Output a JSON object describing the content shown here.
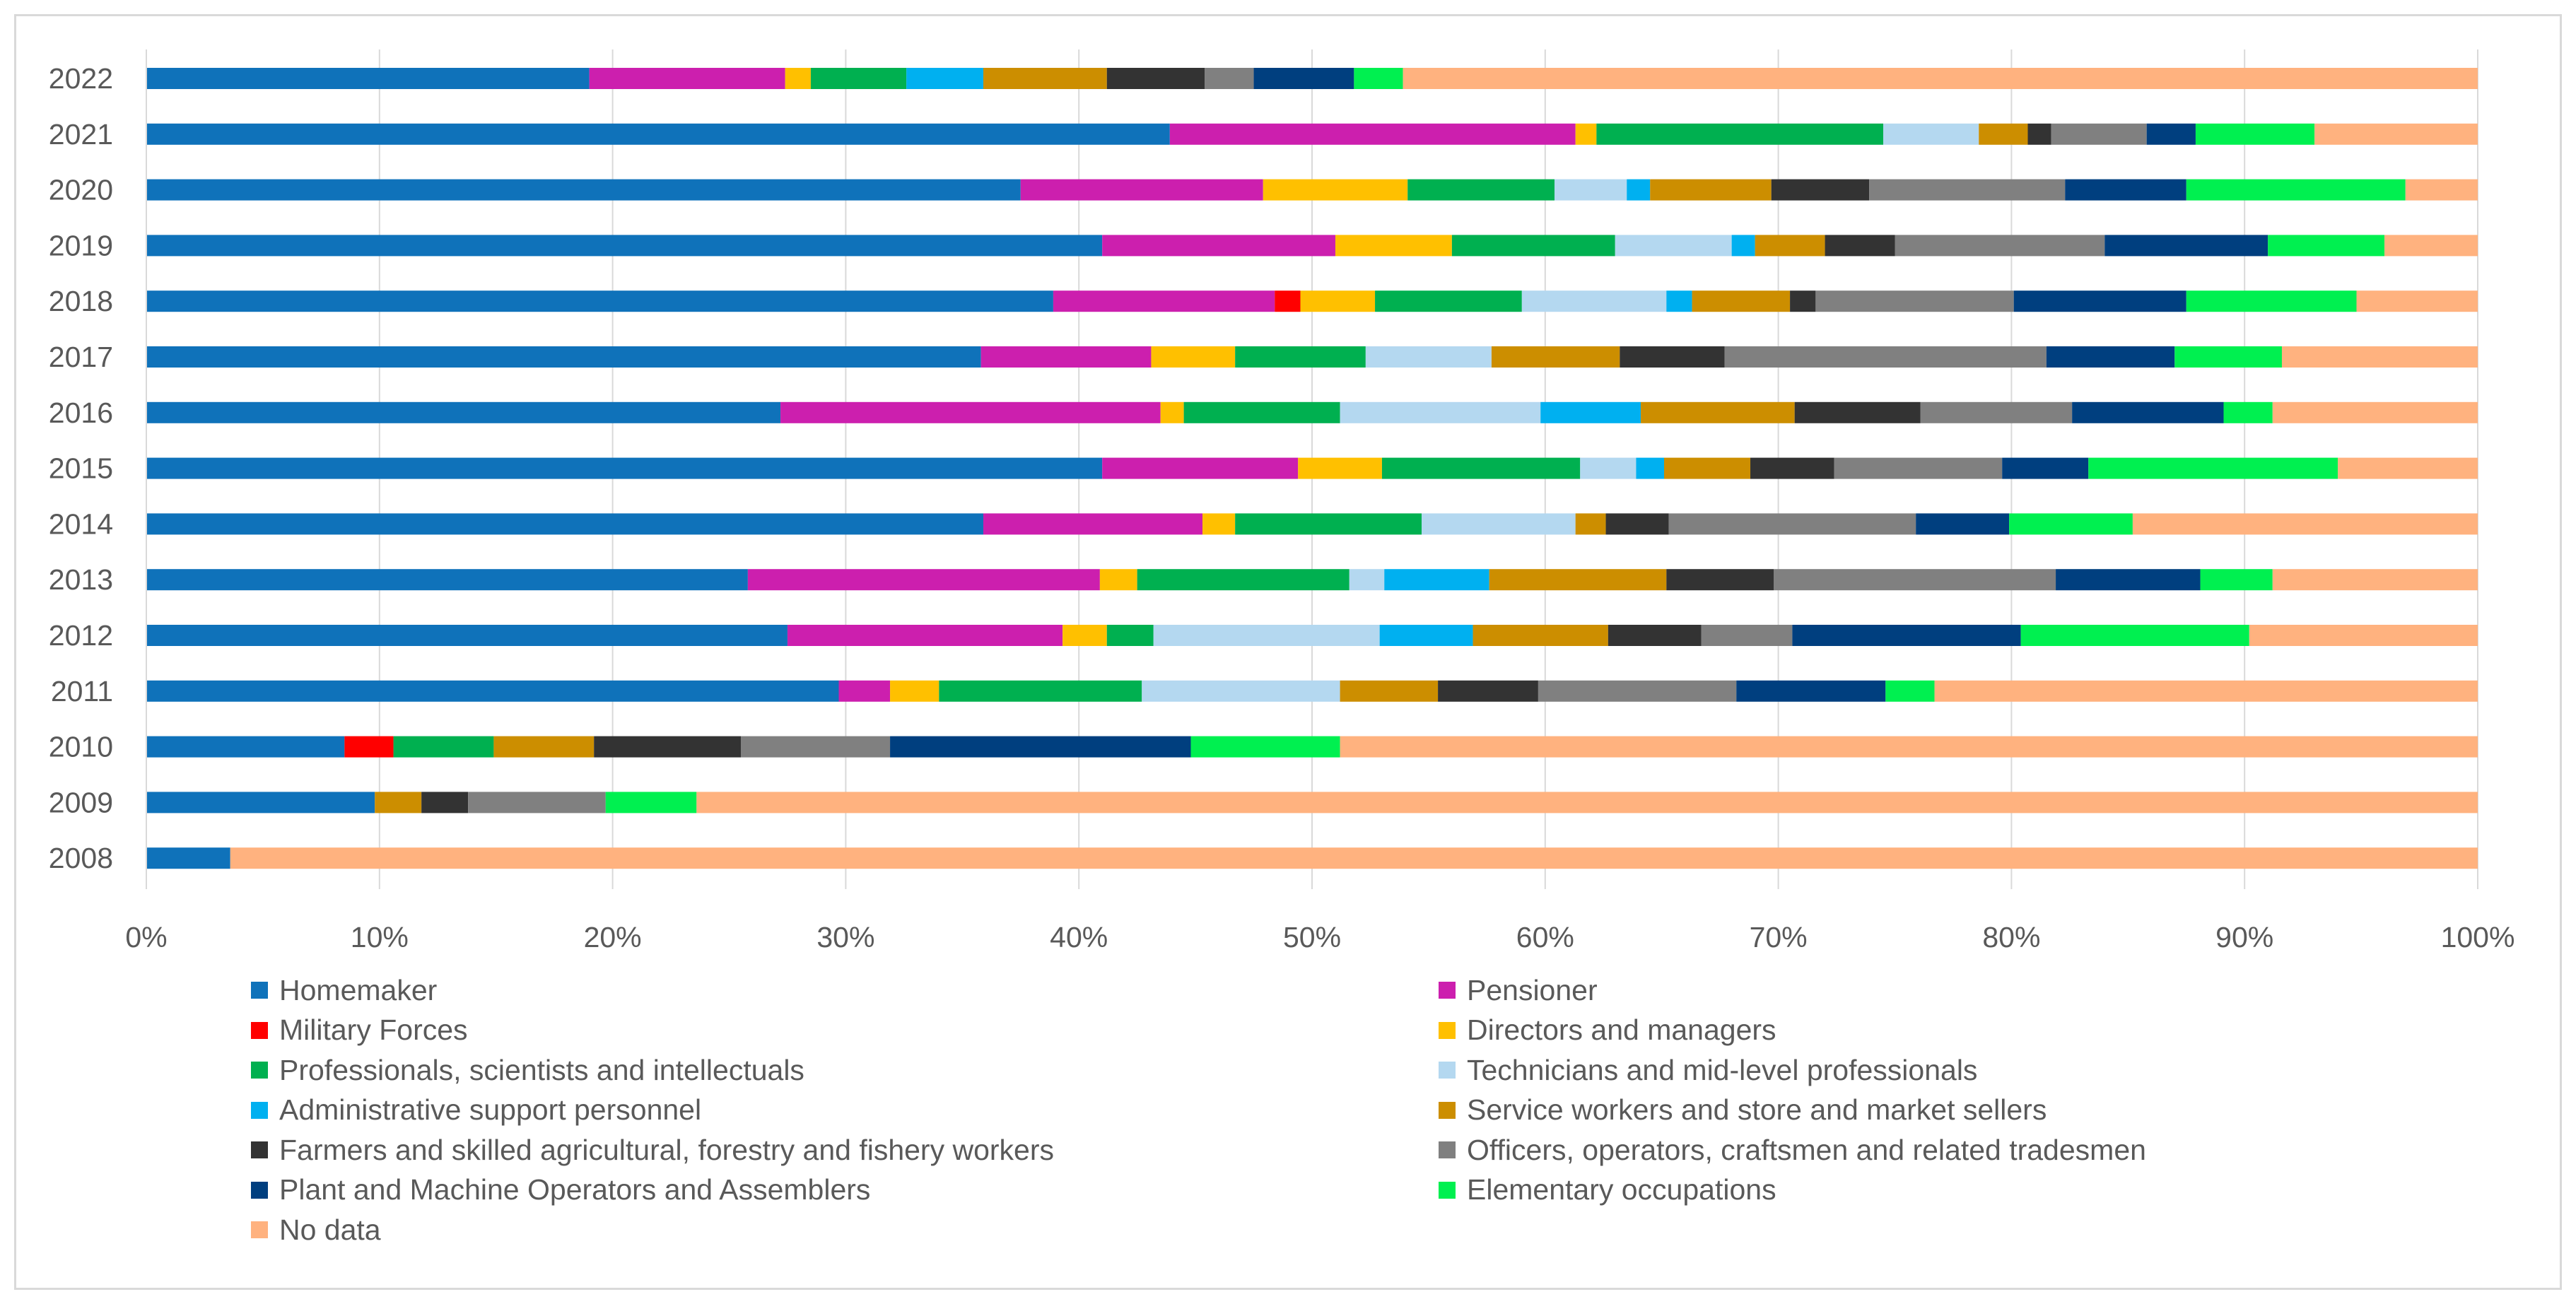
{
  "chart_data": {
    "type": "bar",
    "orientation": "horizontal",
    "stacked": "percent",
    "title": "",
    "xlabel": "",
    "ylabel": "",
    "xlim": [
      0,
      100
    ],
    "x_tick_labels": [
      "0%",
      "10%",
      "20%",
      "30%",
      "40%",
      "50%",
      "60%",
      "70%",
      "80%",
      "90%",
      "100%"
    ],
    "grid": "vertical",
    "legend_position": "bottom",
    "categories": [
      "2022",
      "2021",
      "2020",
      "2019",
      "2018",
      "2017",
      "2016",
      "2015",
      "2014",
      "2013",
      "2012",
      "2011",
      "2010",
      "2009",
      "2008"
    ],
    "series": [
      {
        "name": "Homemaker",
        "color": "#0F72BA",
        "values": [
          19.0,
          43.9,
          37.5,
          41.0,
          38.9,
          35.8,
          27.2,
          41.0,
          35.9,
          25.8,
          27.5,
          29.7,
          8.5,
          9.8,
          3.6
        ]
      },
      {
        "name": "Pensioner",
        "color": "#CC1FAE",
        "values": [
          8.4,
          17.4,
          10.4,
          10.0,
          9.5,
          7.3,
          16.3,
          8.4,
          9.4,
          15.1,
          11.8,
          2.2,
          0,
          0,
          0
        ]
      },
      {
        "name": "Military Forces",
        "color": "#FF0000",
        "values": [
          0,
          0,
          0,
          0,
          1.1,
          0,
          0,
          0,
          0,
          0,
          0,
          0,
          2.1,
          0,
          0
        ]
      },
      {
        "name": "Directors and managers",
        "color": "#FFC000",
        "values": [
          1.1,
          0.9,
          6.2,
          5.0,
          3.2,
          3.6,
          1.0,
          3.6,
          1.4,
          1.6,
          1.9,
          2.1,
          0,
          0,
          0
        ]
      },
      {
        "name": "Professionals, scientists and intellectuals",
        "color": "#00B050",
        "values": [
          4.1,
          12.3,
          6.3,
          7.0,
          6.3,
          5.6,
          6.7,
          8.5,
          8.0,
          9.1,
          2.0,
          8.7,
          4.3,
          0,
          0
        ]
      },
      {
        "name": "Technicians and mid-level professionals",
        "color": "#B4D8F0",
        "values": [
          0,
          4.1,
          3.1,
          5.0,
          6.2,
          5.4,
          8.6,
          2.4,
          6.6,
          1.5,
          9.7,
          8.5,
          0,
          0,
          0
        ]
      },
      {
        "name": "Administrative support personnel",
        "color": "#00B0F0",
        "values": [
          3.3,
          0,
          1.0,
          1.0,
          1.1,
          0,
          4.3,
          1.2,
          0,
          4.5,
          4.0,
          0,
          0,
          0,
          0
        ]
      },
      {
        "name": "Service workers and store and market sellers",
        "color": "#CC8E00",
        "values": [
          5.3,
          2.1,
          5.2,
          3.0,
          4.2,
          5.5,
          6.6,
          3.7,
          1.3,
          7.6,
          5.8,
          4.2,
          4.3,
          2.0,
          0
        ]
      },
      {
        "name": "Farmers and skilled agricultural, forestry and fishery workers",
        "color": "#333333",
        "values": [
          4.2,
          1.0,
          4.2,
          3.0,
          1.1,
          4.5,
          5.4,
          3.6,
          2.7,
          4.6,
          4.0,
          4.3,
          6.3,
          2.0,
          0
        ]
      },
      {
        "name": "Officers, operators, craftsmen and related tradesmen",
        "color": "#808080",
        "values": [
          2.1,
          4.1,
          8.4,
          9.0,
          8.5,
          13.8,
          6.5,
          7.2,
          10.6,
          12.1,
          3.9,
          8.5,
          6.4,
          5.9,
          0
        ]
      },
      {
        "name": "Plant and Machine Operators and Assemblers",
        "color": "#003F7F",
        "values": [
          4.3,
          2.1,
          5.2,
          7.0,
          7.4,
          5.5,
          6.5,
          3.7,
          4.0,
          6.2,
          9.8,
          6.4,
          12.9,
          0,
          0
        ]
      },
      {
        "name": "Elementary occupations",
        "color": "#00F050",
        "values": [
          2.1,
          5.1,
          9.4,
          5.0,
          7.3,
          4.6,
          2.1,
          10.7,
          5.3,
          3.1,
          9.8,
          2.1,
          6.4,
          3.9,
          0
        ]
      },
      {
        "name": "No data",
        "color": "#FFB27F",
        "values": [
          46.1,
          7.0,
          3.1,
          4.0,
          5.3,
          8.4,
          8.8,
          6.0,
          14.8,
          9.2,
          9.8,
          23.5,
          48.8,
          76.4,
          96.4
        ]
      }
    ]
  }
}
